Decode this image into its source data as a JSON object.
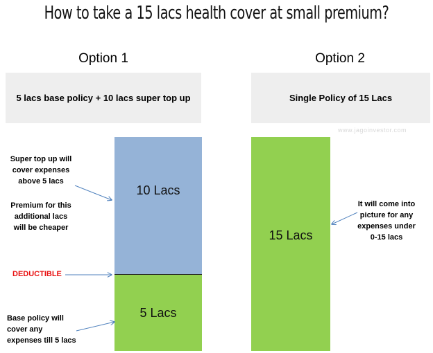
{
  "title": "How to take a 15 lacs health cover at small premium?",
  "option1": {
    "label": "Option 1",
    "policy": "5 lacs base policy + 10 lacs super top up",
    "top_block": "10 Lacs",
    "bottom_block": "5 Lacs"
  },
  "option2": {
    "label": "Option 2",
    "policy": "Single Policy of 15 Lacs",
    "block": "15 Lacs"
  },
  "notes": {
    "super_top_up": [
      "Super top up will",
      "cover expenses",
      "above 5 lacs"
    ],
    "premium": [
      "Premium for this",
      "additional lacs",
      "will be cheaper"
    ],
    "deductible": "DEDUCTIBLE",
    "base_policy": [
      "Base policy will",
      "cover any",
      "expenses till 5 lacs"
    ],
    "option2_note": [
      "It will come into",
      "picture for any",
      "expenses under",
      "0-15 lacs"
    ]
  },
  "watermark": "www.jagoinvestor.com",
  "colors": {
    "blue_block": "#95b3d7",
    "green_block": "#92d050",
    "policy_box": "#eeeeee",
    "deductible_text": "#e81010",
    "arrow": "#4f81bd"
  }
}
